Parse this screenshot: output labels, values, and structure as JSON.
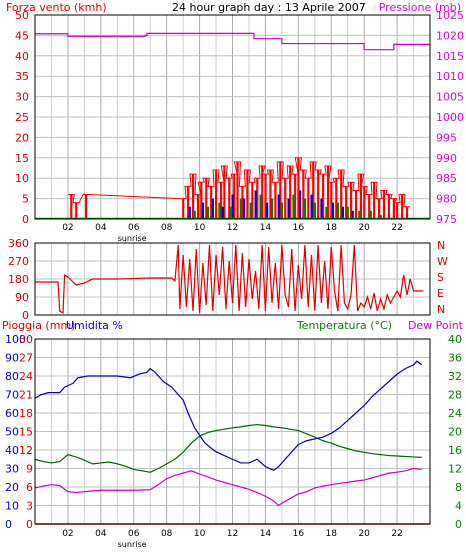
{
  "chart_data": [
    {
      "type": "line",
      "title": "24 hour graph day : 13 Aprile 2007",
      "ylabel_left": "Forza vento (kmh)",
      "ylabel_right": "Pressione (mb)",
      "x_ticks": [
        "02",
        "04",
        "06",
        "08",
        "10",
        "12",
        "14",
        "16",
        "18",
        "20",
        "22"
      ],
      "x_annotation": "sunrise",
      "x_annotation_at": 5.9,
      "xlim": [
        0,
        24
      ],
      "grid": true,
      "y_left_ticks": [
        0,
        5,
        10,
        15,
        20,
        25,
        30,
        35,
        40,
        45,
        50
      ],
      "y_right_ticks": [
        975,
        980,
        985,
        990,
        995,
        1000,
        1005,
        1010,
        1015,
        1020,
        1025
      ],
      "ylim_left": [
        0,
        50
      ],
      "ylim_right": [
        975,
        1025
      ],
      "colors": {
        "left_axis": "#dd0000",
        "right_axis": "#dd00dd",
        "wind": "#ff0000",
        "gust": "#0000cc",
        "avg": "#008000",
        "pressure": "#cc00cc"
      },
      "series": [
        {
          "key": "pressure",
          "type": "step",
          "axis": "right",
          "x": [
            0,
            2.0,
            6.7,
            6.8,
            13.3,
            15.0,
            20.0,
            21.8,
            24.0
          ],
          "y": [
            1020.4,
            1019.8,
            1020.0,
            1020.5,
            1019.2,
            1018.0,
            1016.5,
            1017.8,
            1017.8
          ]
        },
        {
          "key": "wind",
          "type": "bars",
          "axis": "left",
          "x": [
            2.2,
            2.5,
            3.1,
            9.0,
            9.3,
            9.6,
            9.9,
            10.1,
            10.4,
            10.7,
            11.0,
            11.3,
            11.5,
            11.8,
            12.1,
            12.3,
            12.6,
            12.9,
            13.2,
            13.5,
            13.8,
            14.0,
            14.3,
            14.6,
            14.9,
            15.2,
            15.5,
            15.8,
            16.0,
            16.3,
            16.6,
            16.9,
            17.2,
            17.5,
            17.8,
            18.0,
            18.3,
            18.6,
            18.9,
            19.2,
            19.5,
            19.8,
            20.0,
            20.3,
            20.6,
            20.9,
            21.2,
            21.5,
            21.8,
            22.0,
            22.3,
            22.6
          ],
          "y": [
            6,
            4,
            6,
            5,
            8,
            11,
            6,
            9,
            10,
            8,
            12,
            9,
            13,
            10,
            11,
            14,
            8,
            12,
            9,
            10,
            13,
            11,
            12,
            9,
            14,
            10,
            13,
            11,
            15,
            12,
            10,
            14,
            12,
            11,
            13,
            9,
            10,
            12,
            8,
            9,
            7,
            11,
            8,
            6,
            9,
            5,
            7,
            6,
            5,
            4,
            6,
            3
          ]
        },
        {
          "key": "gust",
          "type": "bars",
          "axis": "left",
          "x": [
            9.4,
            10.2,
            10.8,
            11.4,
            12.0,
            12.7,
            13.4,
            14.1,
            14.8,
            15.4,
            16.1,
            16.8,
            17.4,
            18.1,
            18.7,
            19.3
          ],
          "y": [
            3,
            4,
            5,
            3,
            6,
            5,
            7,
            4,
            6,
            5,
            7,
            6,
            5,
            4,
            3,
            2
          ]
        },
        {
          "key": "avg",
          "type": "bars",
          "axis": "left",
          "x": [
            9.7,
            10.5,
            11.2,
            11.9,
            12.5,
            13.1,
            13.7,
            14.4,
            15.0,
            15.7,
            16.4,
            17.0,
            17.7,
            18.4,
            19.0,
            19.7,
            20.4,
            21.0
          ],
          "y": [
            2,
            3,
            4,
            3,
            5,
            4,
            6,
            5,
            4,
            6,
            5,
            4,
            3,
            4,
            3,
            2,
            2,
            1
          ]
        }
      ]
    },
    {
      "type": "line",
      "ylabel_left_ticks": [
        0,
        90,
        180,
        270,
        360
      ],
      "ylabel_right_ticks": [
        "N",
        "W",
        "S",
        "E",
        "N"
      ],
      "ylim": [
        0,
        360
      ],
      "xlim": [
        0,
        24
      ],
      "grid": true,
      "colors": {
        "axis": "#dd0000",
        "line": "#dd0000"
      },
      "series": [
        {
          "key": "wind_direction",
          "x": [
            0.0,
            1.4,
            1.5,
            1.7,
            1.8,
            2.0,
            2.5,
            3.0,
            3.5,
            5.0,
            7.0,
            8.3,
            8.5,
            8.7,
            8.8,
            9.0,
            9.2,
            9.4,
            9.6,
            9.8,
            10.0,
            10.2,
            10.4,
            10.6,
            10.8,
            11.0,
            11.2,
            11.4,
            11.6,
            11.8,
            12.0,
            12.2,
            12.4,
            12.6,
            12.8,
            13.0,
            13.2,
            13.4,
            13.6,
            13.8,
            14.0,
            14.2,
            14.4,
            14.6,
            14.8,
            15.0,
            15.2,
            15.4,
            15.6,
            15.8,
            16.0,
            16.2,
            16.4,
            16.6,
            16.8,
            17.0,
            17.2,
            17.4,
            17.6,
            17.8,
            18.0,
            18.2,
            18.4,
            18.6,
            18.8,
            19.0,
            19.2,
            19.4,
            19.6,
            19.8,
            20.0,
            20.2,
            20.4,
            20.6,
            20.8,
            21.0,
            21.2,
            21.4,
            21.6,
            21.8,
            22.0,
            22.2,
            22.4,
            22.6,
            22.8,
            23.0,
            23.3,
            23.6
          ],
          "y": [
            165,
            165,
            20,
            10,
            200,
            190,
            150,
            160,
            180,
            180,
            185,
            185,
            170,
            350,
            30,
            300,
            40,
            280,
            20,
            330,
            10,
            260,
            50,
            350,
            20,
            300,
            100,
            340,
            30,
            270,
            60,
            350,
            20,
            310,
            40,
            280,
            80,
            220,
            30,
            350,
            20,
            340,
            60,
            260,
            30,
            350,
            100,
            40,
            330,
            20,
            250,
            80,
            350,
            40,
            300,
            20,
            350,
            60,
            270,
            30,
            340,
            120,
            20,
            350,
            60,
            30,
            100,
            350,
            20,
            60,
            40,
            90,
            30,
            110,
            20,
            80,
            30,
            100,
            60,
            90,
            120,
            90,
            200,
            100,
            180,
            120,
            120,
            120
          ]
        }
      ]
    },
    {
      "type": "line",
      "ylabel_left_1": "Pioggia (mm)",
      "ylabel_left_2": "Umidita %",
      "ylabel_right_1": "Temperatura (°C)",
      "ylabel_right_2": "Dew Point",
      "x_ticks": [
        "02",
        "04",
        "06",
        "08",
        "10",
        "12",
        "14",
        "16",
        "18",
        "20",
        "22"
      ],
      "x_annotation": "sunrise",
      "x_annotation_at": 5.9,
      "xlim": [
        0,
        24
      ],
      "grid": true,
      "rain_ticks": [
        "0",
        "3",
        "6",
        "9",
        "12",
        "15",
        "18",
        "21",
        "24",
        "27",
        "30"
      ],
      "humidity_ticks": [
        "0",
        "10",
        "20",
        "30",
        "40",
        "50",
        "60",
        "70",
        "80",
        "90",
        "100"
      ],
      "temp_ticks": [
        "0",
        "4",
        "8",
        "12",
        "16",
        "20",
        "24",
        "28",
        "32",
        "36",
        "40"
      ],
      "ylim_rain": [
        0,
        30
      ],
      "ylim_humidity": [
        0,
        100
      ],
      "ylim_temp": [
        0,
        40
      ],
      "colors": {
        "rain_axis": "#dd0000",
        "humidity_axis": "#0000cc",
        "temp_axis": "#008000",
        "dew_axis": "#cc00cc",
        "rain": "#ff0000",
        "humidity": "#0000aa",
        "temp": "#006600",
        "dew": "#cc00cc"
      },
      "series": [
        {
          "key": "rain",
          "axis": "rain",
          "x": [
            0,
            24
          ],
          "y": [
            0,
            0
          ]
        },
        {
          "key": "humidity",
          "axis": "humidity",
          "x": [
            0.0,
            0.4,
            0.8,
            1.5,
            1.8,
            2.3,
            2.6,
            3.2,
            4.0,
            5.0,
            5.8,
            6.3,
            6.8,
            7.0,
            7.3,
            7.8,
            8.3,
            8.6,
            9.0,
            9.3,
            9.7,
            10.0,
            10.3,
            10.7,
            11.0,
            11.5,
            12.0,
            12.5,
            13.0,
            13.5,
            14.0,
            14.5,
            14.8,
            15.2,
            15.6,
            16.0,
            16.5,
            17.0,
            17.5,
            18.0,
            18.5,
            19.0,
            19.5,
            20.0,
            20.5,
            21.0,
            21.5,
            22.0,
            22.5,
            23.0,
            23.2,
            23.5
          ],
          "y": [
            68,
            70,
            71,
            71,
            74,
            76,
            79,
            80,
            80,
            80,
            79,
            81,
            82,
            84,
            82,
            77,
            74,
            71,
            67,
            60,
            52,
            48,
            44,
            41,
            39,
            37,
            35,
            33,
            33,
            35,
            31,
            29,
            31,
            35,
            39,
            43,
            45,
            46,
            47,
            49,
            52,
            56,
            60,
            64,
            69,
            73,
            77,
            81,
            84,
            86,
            88,
            86
          ]
        },
        {
          "key": "temp",
          "axis": "temp",
          "x": [
            0.0,
            0.5,
            1.0,
            1.5,
            2.0,
            2.5,
            3.0,
            3.5,
            4.0,
            4.5,
            5.0,
            5.5,
            6.0,
            6.5,
            7.0,
            7.5,
            8.0,
            8.5,
            9.0,
            9.5,
            10.0,
            10.5,
            11.0,
            11.5,
            12.0,
            12.5,
            13.0,
            13.5,
            14.0,
            14.5,
            15.0,
            15.5,
            16.0,
            16.5,
            17.0,
            17.5,
            18.0,
            18.5,
            19.0,
            19.5,
            20.0,
            20.5,
            21.0,
            21.5,
            22.0,
            22.5,
            23.0,
            23.5
          ],
          "y": [
            14.0,
            13.5,
            13.2,
            13.5,
            15.0,
            14.5,
            13.8,
            13.0,
            13.2,
            13.4,
            13.0,
            12.5,
            11.8,
            11.5,
            11.2,
            12.0,
            13.0,
            14.0,
            15.5,
            17.5,
            19.0,
            19.8,
            20.2,
            20.5,
            20.8,
            21.0,
            21.3,
            21.5,
            21.3,
            21.0,
            20.8,
            20.5,
            20.2,
            19.5,
            18.8,
            18.0,
            17.5,
            16.8,
            16.3,
            15.8,
            15.5,
            15.2,
            15.0,
            14.8,
            14.7,
            14.6,
            14.5,
            14.4
          ]
        },
        {
          "key": "dew",
          "axis": "temp",
          "x": [
            0.0,
            0.5,
            1.0,
            1.5,
            2.0,
            2.5,
            3.0,
            4.0,
            5.0,
            6.0,
            7.0,
            7.5,
            8.0,
            8.5,
            9.0,
            9.5,
            10.0,
            10.5,
            11.0,
            11.5,
            12.0,
            12.5,
            13.0,
            13.5,
            14.0,
            14.5,
            14.8,
            15.0,
            15.5,
            16.0,
            16.5,
            17.0,
            17.5,
            18.0,
            18.5,
            19.0,
            19.5,
            20.0,
            20.5,
            21.0,
            21.5,
            22.0,
            22.5,
            23.0,
            23.5
          ],
          "y": [
            7.8,
            8.2,
            8.5,
            8.3,
            7.0,
            6.8,
            7.0,
            7.3,
            7.3,
            7.3,
            7.4,
            8.5,
            9.8,
            10.5,
            11.0,
            11.5,
            10.8,
            10.2,
            9.5,
            9.0,
            8.5,
            8.0,
            7.5,
            6.8,
            6.0,
            5.0,
            4.0,
            4.5,
            5.5,
            6.5,
            7.0,
            7.8,
            8.2,
            8.5,
            8.8,
            9.0,
            9.3,
            9.5,
            10.0,
            10.5,
            11.0,
            11.2,
            11.5,
            12.0,
            11.8
          ]
        }
      ]
    }
  ]
}
